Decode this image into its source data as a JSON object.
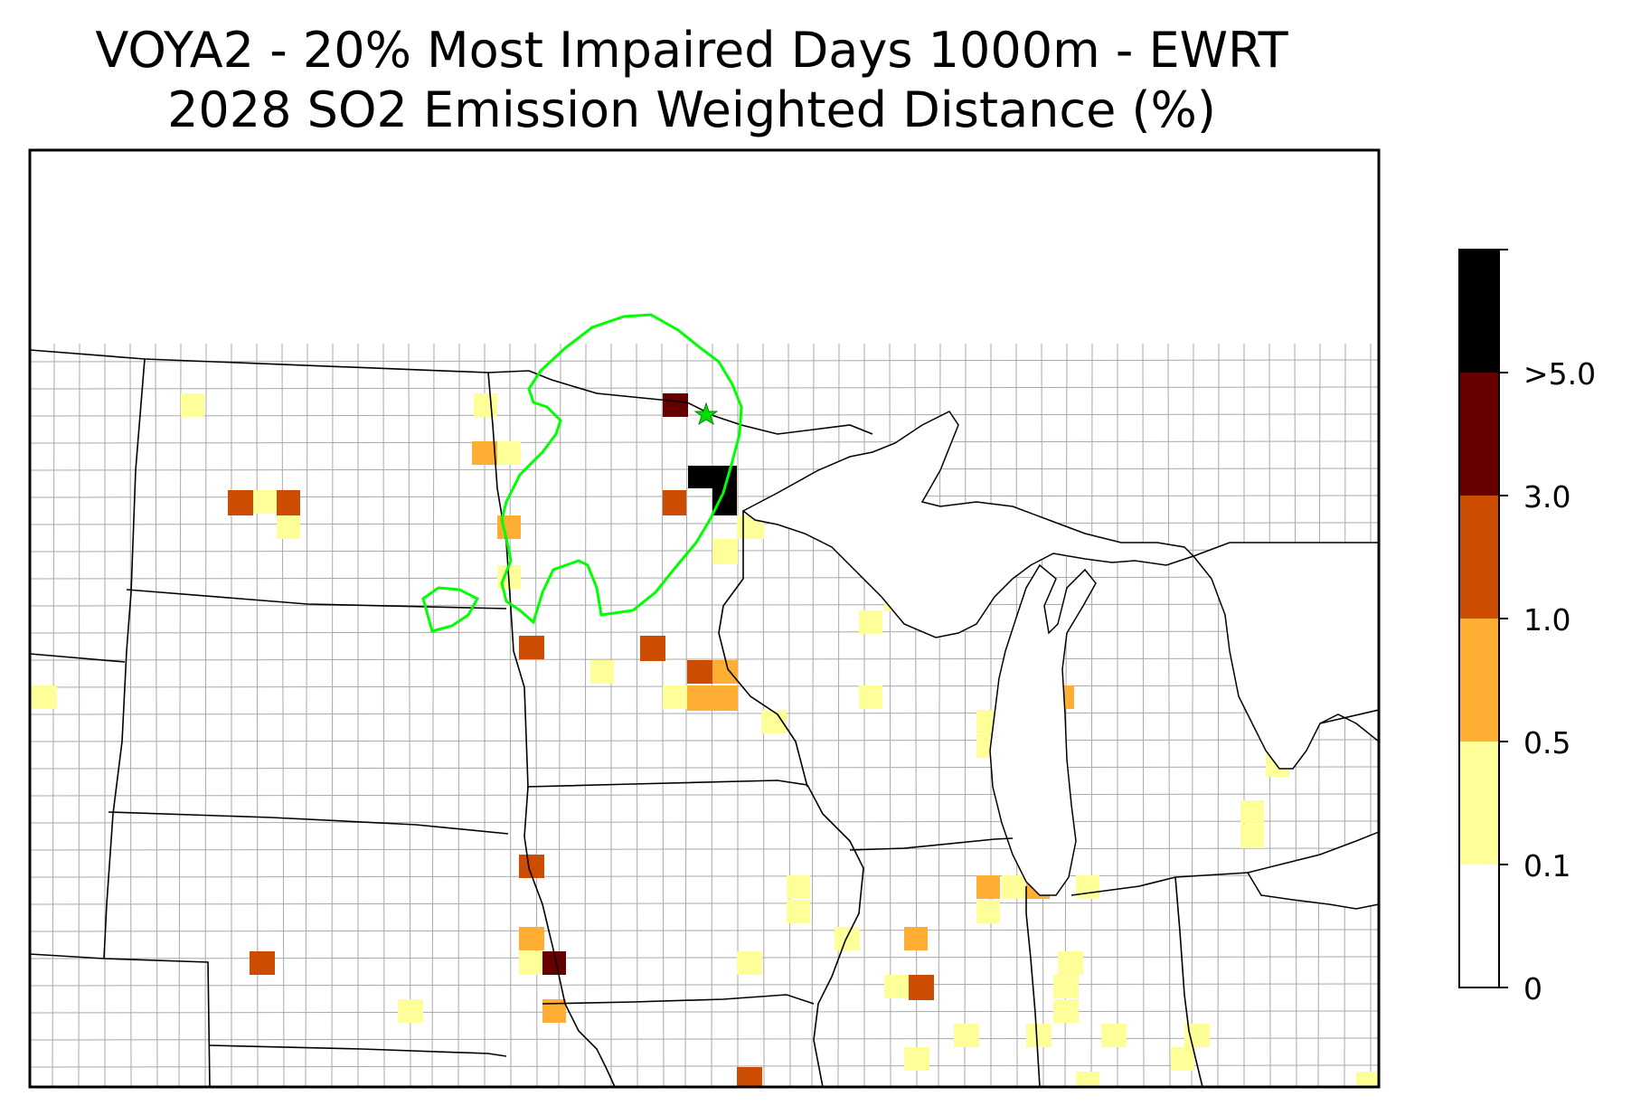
{
  "title": {
    "line1": "VOYA2 - 20% Most Impaired Days 1000m - EWRT",
    "line2": "2028 SO2 Emission Weighted Distance (%)"
  },
  "colorbar": {
    "labels": [
      ">5.0",
      "3.0",
      "1.0",
      "0.5",
      "0.1",
      "0"
    ],
    "bins": [
      {
        "range": "0 - 0.1",
        "color": "#ffffff"
      },
      {
        "range": "0.1 - 0.5",
        "color": "#ffff99"
      },
      {
        "range": "0.5 - 1.0",
        "color": "#fdae33"
      },
      {
        "range": "1.0 - 3.0",
        "color": "#cc4c02"
      },
      {
        "range": "3.0 - 5.0",
        "color": "#660000"
      },
      {
        "range": ">5.0",
        "color": "#000000"
      }
    ]
  },
  "map": {
    "region": "Upper Midwest United States (MN, ND, SD, NE, IA, WI, MI, IL, IN)",
    "marker": "VOYA2 receptor (green star)",
    "contour_color": "#00ff00"
  }
}
